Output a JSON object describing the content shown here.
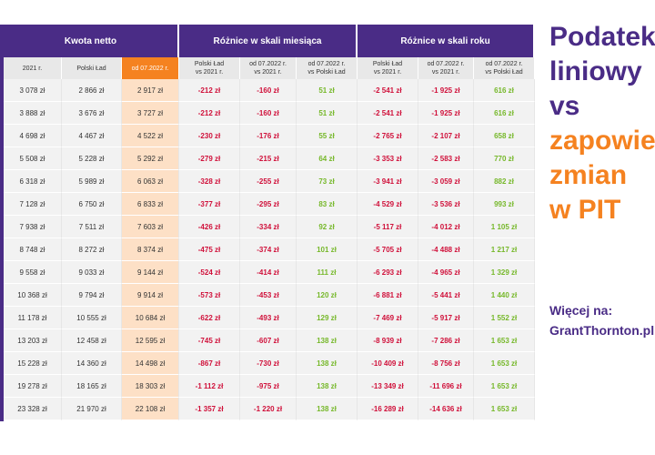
{
  "table": {
    "groups": [
      "Kwota netto",
      "Różnice w skali miesiąca",
      "Różnice w skali roku"
    ],
    "subheaders": [
      "2021 r.",
      "Polski Ład",
      "od 07.2022 r.",
      "Polski Ład\nvs 2021 r.",
      "od 07.2022 r.\nvs 2021 r.",
      "od 07.2022 r.\nvs Polski Ład",
      "Polski Ład\nvs 2021 r.",
      "od 07.2022 r.\nvs 2021 r.",
      "od 07.2022 r.\nvs Polski Ład"
    ],
    "rows": [
      [
        "3 078 zł",
        "2 866 zł",
        "2 917 zł",
        "-212 zł",
        "-160 zł",
        "51 zł",
        "-2 541 zł",
        "-1 925 zł",
        "616 zł"
      ],
      [
        "3 888 zł",
        "3 676 zł",
        "3 727 zł",
        "-212 zł",
        "-160 zł",
        "51 zł",
        "-2 541 zł",
        "-1 925 zł",
        "616 zł"
      ],
      [
        "4 698 zł",
        "4 467 zł",
        "4 522 zł",
        "-230 zł",
        "-176 zł",
        "55 zł",
        "-2 765 zł",
        "-2 107 zł",
        "658 zł"
      ],
      [
        "5 508 zł",
        "5 228 zł",
        "5 292 zł",
        "-279 zł",
        "-215 zł",
        "64 zł",
        "-3 353 zł",
        "-2 583 zł",
        "770 zł"
      ],
      [
        "6 318 zł",
        "5 989 zł",
        "6 063 zł",
        "-328 zł",
        "-255 zł",
        "73 zł",
        "-3 941 zł",
        "-3 059 zł",
        "882 zł"
      ],
      [
        "7 128 zł",
        "6 750 zł",
        "6 833 zł",
        "-377 zł",
        "-295 zł",
        "83 zł",
        "-4 529 zł",
        "-3 536 zł",
        "993 zł"
      ],
      [
        "7 938 zł",
        "7 511 zł",
        "7 603 zł",
        "-426 zł",
        "-334 zł",
        "92 zł",
        "-5 117 zł",
        "-4 012 zł",
        "1 105 zł"
      ],
      [
        "8 748 zł",
        "8 272 zł",
        "8 374 zł",
        "-475 zł",
        "-374 zł",
        "101 zł",
        "-5 705 zł",
        "-4 488 zł",
        "1 217 zł"
      ],
      [
        "9 558 zł",
        "9 033 zł",
        "9 144 zł",
        "-524 zł",
        "-414 zł",
        "111 zł",
        "-6 293 zł",
        "-4 965 zł",
        "1 329 zł"
      ],
      [
        "10 368 zł",
        "9 794 zł",
        "9 914 zł",
        "-573 zł",
        "-453 zł",
        "120 zł",
        "-6 881 zł",
        "-5 441 zł",
        "1 440 zł"
      ],
      [
        "11 178 zł",
        "10 555 zł",
        "10 684 zł",
        "-622 zł",
        "-493 zł",
        "129 zł",
        "-7 469 zł",
        "-5 917 zł",
        "1 552 zł"
      ],
      [
        "13 203 zł",
        "12 458 zł",
        "12 595 zł",
        "-745 zł",
        "-607 zł",
        "138 zł",
        "-8 939 zł",
        "-7 286 zł",
        "1 653 zł"
      ],
      [
        "15 228 zł",
        "14 360 zł",
        "14 498 zł",
        "-867 zł",
        "-730 zł",
        "138 zł",
        "-10 409 zł",
        "-8 756 zł",
        "1 653 zł"
      ],
      [
        "19 278 zł",
        "18 165 zł",
        "18 303 zł",
        "-1 112 zł",
        "-975 zł",
        "138 zł",
        "-13 349 zł",
        "-11 696 zł",
        "1 653 zł"
      ],
      [
        "23 328 zł",
        "21 970 zł",
        "22 108 zł",
        "-1 357 zł",
        "-1 220 zł",
        "138 zł",
        "-16 289 zł",
        "-14 636 zł",
        "1 653 zł"
      ]
    ]
  },
  "side": {
    "lines": [
      {
        "text": "Podatek",
        "color": "purple"
      },
      {
        "text": "liniowy",
        "color": "purple"
      },
      {
        "text": "vs",
        "color": "purple"
      },
      {
        "text": "zapowiedź",
        "color": "orange"
      },
      {
        "text": "zmian",
        "color": "orange"
      },
      {
        "text": "w PIT",
        "color": "orange"
      }
    ],
    "more_label": "Więcej na:",
    "more_site": "GrantThornton.pl"
  },
  "colors": {
    "purple": "#4a2c86",
    "orange": "#f58220",
    "negative": "#d0103a",
    "positive": "#76b82a",
    "highlight": "#fde0c6"
  }
}
